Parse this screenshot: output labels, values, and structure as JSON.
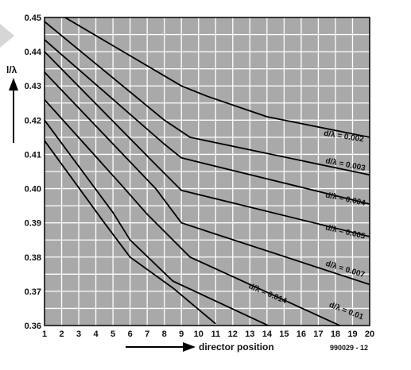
{
  "chart_data": {
    "type": "line",
    "title": "",
    "xlabel": "director position",
    "ylabel": "l/λ",
    "figure_code": "990029 - 12",
    "xlim": [
      1,
      20
    ],
    "ylim": [
      0.36,
      0.45
    ],
    "x_ticks": [
      "1",
      "2",
      "3",
      "4",
      "5",
      "6",
      "7",
      "8",
      "9",
      "10",
      "11",
      "12",
      "13",
      "14",
      "15",
      "16",
      "17",
      "18",
      "19",
      "20"
    ],
    "y_ticks": [
      "0.36",
      "0.37",
      "0.38",
      "0.39",
      "0.40",
      "0.41",
      "0.42",
      "0.43",
      "0.44",
      "0.45"
    ],
    "grid": true,
    "colors": {
      "plot_background": "#a9a9a9",
      "grid": "#ffffff",
      "lines": "#000000"
    },
    "series": [
      {
        "name": "d/λ = 0.002",
        "label_at": [
          17.3,
          0.4155
        ],
        "label_angle": 9,
        "points": [
          [
            2.2,
            0.45
          ],
          [
            9,
            0.43
          ],
          [
            10.5,
            0.427
          ],
          [
            14,
            0.421
          ],
          [
            20,
            0.415
          ]
        ]
      },
      {
        "name": "d/λ = 0.003",
        "label_at": [
          17.4,
          0.4075
        ],
        "label_angle": 11,
        "points": [
          [
            1,
            0.4488
          ],
          [
            8,
            0.42
          ],
          [
            9.5,
            0.415
          ],
          [
            20,
            0.404
          ]
        ]
      },
      {
        "name": "d/λ = 0.004",
        "label_at": [
          17.4,
          0.3975
        ],
        "label_angle": 12,
        "points": [
          [
            1,
            0.4435
          ],
          [
            8,
            0.413
          ],
          [
            9,
            0.409
          ],
          [
            20,
            0.3955
          ]
        ]
      },
      {
        "name": "d/λ = 0.005",
        "label_at": [
          17.4,
          0.388
        ],
        "label_angle": 13,
        "points": [
          [
            1,
            0.44
          ],
          [
            7.5,
            0.407
          ],
          [
            9,
            0.3995
          ],
          [
            20,
            0.386
          ]
        ]
      },
      {
        "name": "d/λ = 0.007",
        "label_at": [
          17.4,
          0.3775
        ],
        "label_angle": 17,
        "points": [
          [
            1,
            0.434
          ],
          [
            7.5,
            0.4
          ],
          [
            9,
            0.39
          ],
          [
            20,
            0.372
          ]
        ]
      },
      {
        "name": "d/λ = 0.01",
        "label_at": [
          17.6,
          0.3655
        ],
        "label_angle": 21,
        "points": [
          [
            1,
            0.426
          ],
          [
            5.5,
            0.401
          ],
          [
            7,
            0.3925
          ],
          [
            9.5,
            0.38
          ],
          [
            20,
            0.356
          ]
        ]
      },
      {
        "name": "d/λ = 0.014",
        "label_at": [
          12.9,
          0.371
        ],
        "label_angle": 23,
        "points": [
          [
            1,
            0.42
          ],
          [
            5,
            0.393
          ],
          [
            6,
            0.385
          ],
          [
            8.5,
            0.373
          ],
          [
            16,
            0.3555
          ]
        ]
      },
      {
        "name": "",
        "label_at": null,
        "label_angle": 0,
        "points": [
          [
            1,
            0.414
          ],
          [
            4.5,
            0.39
          ],
          [
            6,
            0.38
          ],
          [
            8.5,
            0.371
          ],
          [
            11,
            0.3605
          ]
        ]
      }
    ]
  }
}
